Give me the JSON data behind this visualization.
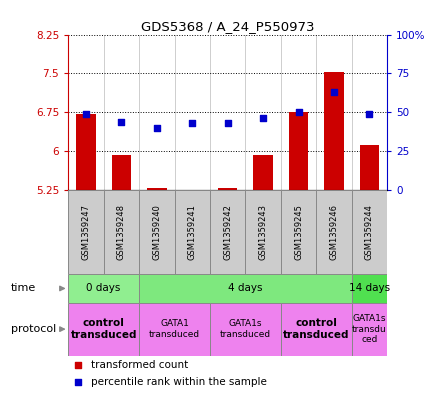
{
  "title": "GDS5368 / A_24_P550973",
  "samples": [
    "GSM1359247",
    "GSM1359248",
    "GSM1359240",
    "GSM1359241",
    "GSM1359242",
    "GSM1359243",
    "GSM1359245",
    "GSM1359246",
    "GSM1359244"
  ],
  "bar_values": [
    6.72,
    5.93,
    5.28,
    5.25,
    5.28,
    5.93,
    6.75,
    7.52,
    6.12
  ],
  "dot_values": [
    49,
    44,
    40,
    43,
    43,
    46,
    50,
    63,
    49
  ],
  "ylim": [
    5.25,
    8.25
  ],
  "yticks": [
    5.25,
    6.0,
    6.75,
    7.5,
    8.25
  ],
  "ytick_labels": [
    "5.25",
    "6",
    "6.75",
    "7.5",
    "8.25"
  ],
  "y2lim": [
    0,
    100
  ],
  "y2ticks": [
    0,
    25,
    50,
    75,
    100
  ],
  "y2tick_labels": [
    "0",
    "25",
    "50",
    "75",
    "100%"
  ],
  "bar_color": "#cc0000",
  "dot_color": "#0000cc",
  "bar_base": 5.25,
  "time_groups": [
    {
      "label": "0 days",
      "start": 0,
      "end": 2,
      "color": "#90ee90"
    },
    {
      "label": "4 days",
      "start": 2,
      "end": 8,
      "color": "#7ee87e"
    },
    {
      "label": "14 days",
      "start": 8,
      "end": 9,
      "color": "#50e050"
    }
  ],
  "protocol_groups": [
    {
      "label": "control\ntransduced",
      "start": 0,
      "end": 2,
      "color": "#ee82ee",
      "bold": true
    },
    {
      "label": "GATA1\ntransduced",
      "start": 2,
      "end": 4,
      "color": "#ee82ee",
      "bold": false
    },
    {
      "label": "GATA1s\ntransduced",
      "start": 4,
      "end": 6,
      "color": "#ee82ee",
      "bold": false
    },
    {
      "label": "control\ntransduced",
      "start": 6,
      "end": 8,
      "color": "#ee82ee",
      "bold": true
    },
    {
      "label": "GATA1s\ntransdu\nced",
      "start": 8,
      "end": 9,
      "color": "#ee82ee",
      "bold": false
    }
  ],
  "legend_items": [
    {
      "color": "#cc0000",
      "label": "transformed count"
    },
    {
      "color": "#0000cc",
      "label": "percentile rank within the sample"
    }
  ]
}
